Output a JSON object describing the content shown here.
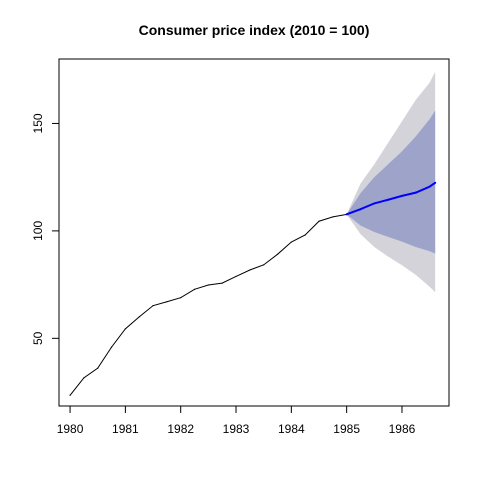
{
  "chart_data": {
    "type": "line",
    "title": "Consumer price index (2010 = 100)",
    "xlabel": "",
    "ylabel": "",
    "xlim": [
      1979.8,
      1986.85
    ],
    "ylim": [
      18.5,
      180
    ],
    "x_ticks": [
      1980,
      1981,
      1982,
      1983,
      1984,
      1985,
      1986
    ],
    "x_tick_labels": [
      "1980",
      "1981",
      "1982",
      "1983",
      "1984",
      "1985",
      "1986"
    ],
    "y_ticks": [
      50,
      100,
      150
    ],
    "y_tick_labels": [
      "50",
      "100",
      "150"
    ],
    "grid": false,
    "legend": "none",
    "colors": {
      "history": "#000000",
      "forecast": "#0000ff",
      "band_80": "#9ea3c9",
      "band_95": "#d3d3d9"
    },
    "history": {
      "x": [
        1980.0,
        1980.25,
        1980.5,
        1980.75,
        1981.0,
        1981.25,
        1981.5,
        1981.75,
        1982.0,
        1982.25,
        1982.5,
        1982.75,
        1983.0,
        1983.25,
        1983.5,
        1983.75,
        1984.0,
        1984.25,
        1984.5,
        1984.75,
        1985.0
      ],
      "y": [
        23.5,
        31.6,
        36.1,
        45.9,
        54.4,
        60.0,
        65.2,
        67.0,
        68.9,
        72.8,
        74.8,
        75.7,
        78.8,
        81.8,
        84.2,
        89.1,
        94.8,
        98.1,
        104.5,
        106.5,
        107.7
      ]
    },
    "forecast": {
      "x": [
        1985.0,
        1985.25,
        1985.5,
        1985.75,
        1986.0,
        1986.25,
        1986.5,
        1986.6
      ],
      "mean": [
        107.7,
        110.1,
        112.8,
        114.5,
        116.3,
        117.8,
        120.6,
        122.4
      ],
      "lo80": [
        107.7,
        102.5,
        99.5,
        97.2,
        95.0,
        92.5,
        90.5,
        89.5
      ],
      "hi80": [
        107.7,
        117.5,
        125.0,
        131.0,
        137.0,
        144.0,
        152.0,
        156.0
      ],
      "lo95": [
        107.7,
        98.5,
        92.5,
        88.0,
        84.0,
        79.5,
        74.0,
        71.5
      ],
      "hi95": [
        107.7,
        122.0,
        131.0,
        141.0,
        151.0,
        161.0,
        169.0,
        174.0
      ]
    }
  }
}
